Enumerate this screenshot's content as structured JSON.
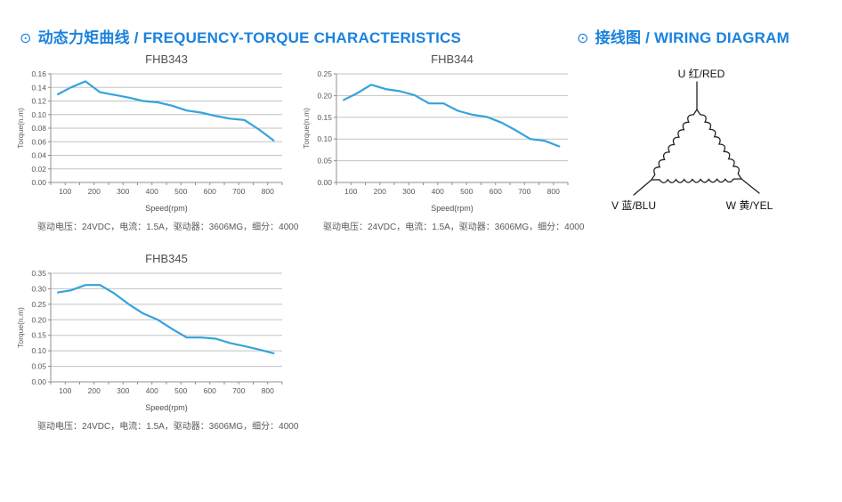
{
  "header": {
    "accent_color": "#1a82dd",
    "left": {
      "bullet": "⊙",
      "title": "动态力矩曲线 / FREQUENCY-TORQUE CHARACTERISTICS"
    },
    "right": {
      "bullet": "⊙",
      "title": "接线图 / WIRING DIAGRAM"
    }
  },
  "chart_data": [
    {
      "type": "line",
      "title": "FHB343",
      "xlabel": "Speed(rpm)",
      "ylabel": "Torque(n.m)",
      "caption": "驱动电压：24VDC，电流：1.5A，驱动器：3606MG，细分：4000",
      "x": [
        75,
        120,
        170,
        220,
        270,
        320,
        370,
        420,
        470,
        520,
        570,
        620,
        670,
        720,
        770,
        820
      ],
      "values": [
        0.13,
        0.14,
        0.149,
        0.133,
        0.129,
        0.125,
        0.12,
        0.118,
        0.113,
        0.106,
        0.103,
        0.098,
        0.094,
        0.092,
        0.078,
        0.062
      ],
      "xlim": [
        50,
        850
      ],
      "ylim": [
        0,
        0.16
      ],
      "ystep": 0.02,
      "xtick_minor": 50,
      "xtick_label": 100,
      "grid": true,
      "legend": "none",
      "line_color": "#35a3dc",
      "grid_color": "#c3c3c3",
      "axis_color": "#8f8f8f"
    },
    {
      "type": "line",
      "title": "FHB344",
      "xlabel": "Speed(rpm)",
      "ylabel": "Torque(n.m)",
      "caption": "驱动电压：24VDC，电流：1.5A，驱动器：3606MG，细分：4000",
      "x": [
        75,
        120,
        170,
        220,
        270,
        320,
        370,
        420,
        470,
        520,
        570,
        620,
        670,
        720,
        770,
        820
      ],
      "values": [
        0.19,
        0.205,
        0.225,
        0.215,
        0.21,
        0.201,
        0.182,
        0.182,
        0.165,
        0.156,
        0.151,
        0.138,
        0.12,
        0.1,
        0.096,
        0.083
      ],
      "xlim": [
        50,
        850
      ],
      "ylim": [
        0,
        0.25
      ],
      "ystep": 0.05,
      "xtick_minor": 50,
      "xtick_label": 100,
      "grid": true,
      "legend": "none",
      "line_color": "#35a3dc",
      "grid_color": "#c3c3c3",
      "axis_color": "#8f8f8f"
    },
    {
      "type": "line",
      "title": "FHB345",
      "xlabel": "Speed(rpm)",
      "ylabel": "Torque(n.m)",
      "caption": "驱动电压：24VDC，电流：1.5A，驱动器：3606MG，细分：4000",
      "x": [
        75,
        120,
        170,
        220,
        270,
        320,
        370,
        420,
        470,
        520,
        570,
        620,
        670,
        720,
        770,
        820
      ],
      "values": [
        0.288,
        0.295,
        0.312,
        0.312,
        0.285,
        0.25,
        0.22,
        0.2,
        0.17,
        0.143,
        0.143,
        0.139,
        0.125,
        0.115,
        0.104,
        0.092
      ],
      "xlim": [
        50,
        850
      ],
      "ylim": [
        0,
        0.35
      ],
      "ystep": 0.05,
      "xtick_minor": 50,
      "xtick_label": 100,
      "grid": true,
      "legend": "none",
      "line_color": "#35a3dc",
      "grid_color": "#c3c3c3",
      "axis_color": "#8f8f8f"
    }
  ],
  "wiring": {
    "type": "delta-winding",
    "u_label": "U 红/RED",
    "v_label": "V 蓝/BLU",
    "w_label": "W 黄/YEL",
    "stroke_color": "#222222"
  }
}
